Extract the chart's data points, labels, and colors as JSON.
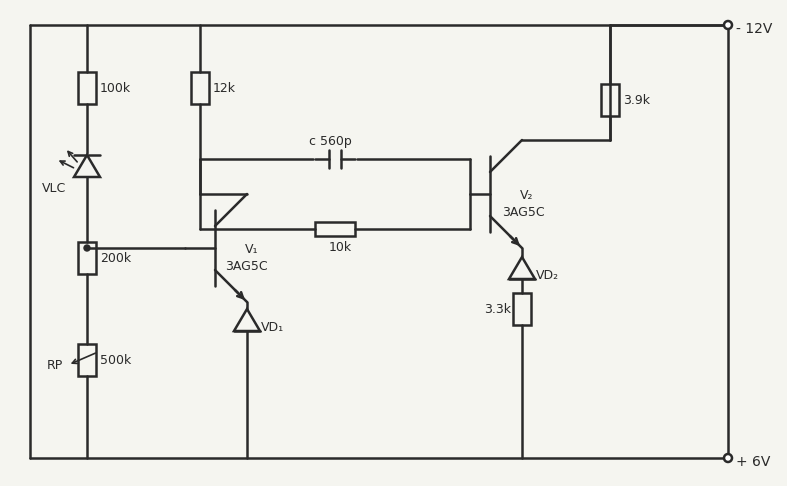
{
  "bg_color": "#f5f5f0",
  "line_color": "#2a2a2a",
  "lw": 1.8,
  "supply_neg": "- 12V",
  "supply_pos": "+ 6V",
  "labels": {
    "R100k": "100k",
    "R12k": "12k",
    "R560p": "560p",
    "R10k": "10k",
    "R200k": "200k",
    "R500k": "500k",
    "R3p9k": "3.9k",
    "R3p3k": "3.3k",
    "V1": "V₁",
    "V1_type": "3AG5C",
    "V2": "V₂",
    "V2_type": "3AG5C",
    "VD1": "VD₁",
    "VD2": "VD₂",
    "VLC": "VLC",
    "RP": "RP",
    "c_label": "c"
  }
}
